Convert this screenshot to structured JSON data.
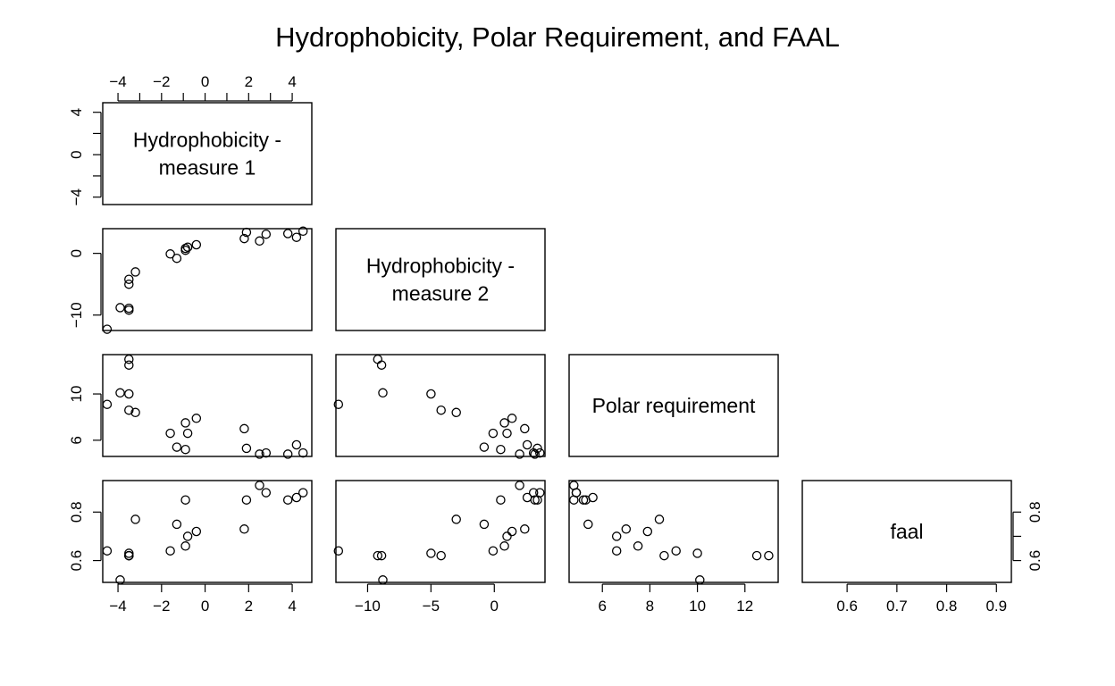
{
  "chart_data": {
    "type": "scatter",
    "title": "Hydrophobicity, Polar Requirement, and FAAL",
    "variables": [
      {
        "key": "h1",
        "label": [
          "Hydrophobicity -",
          "measure 1"
        ],
        "range": [
          -4.7,
          4.9
        ],
        "ticks": [
          -4,
          -2,
          0,
          2,
          4
        ],
        "y_ticks": [
          -4,
          0,
          4
        ]
      },
      {
        "key": "h2",
        "label": [
          "Hydrophobicity -",
          "measure 2"
        ],
        "range": [
          -12.5,
          4.0
        ],
        "ticks": [
          -10,
          -5,
          0
        ],
        "y_ticks": [
          -10,
          0
        ]
      },
      {
        "key": "pr",
        "label": [
          "Polar requirement"
        ],
        "range": [
          4.6,
          13.4
        ],
        "ticks": [
          6,
          8,
          10,
          12
        ],
        "y_ticks": [
          6,
          10
        ]
      },
      {
        "key": "faal",
        "label": [
          "faal"
        ],
        "range": [
          0.51,
          0.93
        ],
        "ticks": [
          0.6,
          0.7,
          0.8,
          0.9
        ],
        "y_ticks": [
          0.6,
          0.8
        ]
      }
    ],
    "observations": [
      {
        "h1": -4.5,
        "h2": -12.3,
        "pr": 9.1,
        "faal": 0.64
      },
      {
        "h1": -3.9,
        "h2": -8.8,
        "pr": 10.1,
        "faal": 0.52
      },
      {
        "h1": -3.5,
        "h2": -8.9,
        "pr": 12.5,
        "faal": 0.62
      },
      {
        "h1": -3.5,
        "h2": -9.2,
        "pr": 13.0,
        "faal": 0.62
      },
      {
        "h1": -3.5,
        "h2": -5.0,
        "pr": 10.0,
        "faal": 0.63
      },
      {
        "h1": -3.5,
        "h2": -4.2,
        "pr": 8.6,
        "faal": 0.62
      },
      {
        "h1": -3.2,
        "h2": -3.0,
        "pr": 8.4,
        "faal": 0.77
      },
      {
        "h1": -1.6,
        "h2": -0.1,
        "pr": 6.6,
        "faal": 0.64
      },
      {
        "h1": -1.3,
        "h2": -0.8,
        "pr": 5.4,
        "faal": 0.75
      },
      {
        "h1": -0.9,
        "h2": 0.5,
        "pr": 5.2,
        "faal": 0.85
      },
      {
        "h1": -0.9,
        "h2": 0.8,
        "pr": 7.5,
        "faal": 0.66
      },
      {
        "h1": -0.8,
        "h2": 1.0,
        "pr": 6.6,
        "faal": 0.7
      },
      {
        "h1": -0.4,
        "h2": 1.4,
        "pr": 7.9,
        "faal": 0.72
      },
      {
        "h1": 1.8,
        "h2": 2.4,
        "pr": 7.0,
        "faal": 0.73
      },
      {
        "h1": 1.9,
        "h2": 3.4,
        "pr": 5.3,
        "faal": 0.85
      },
      {
        "h1": 2.5,
        "h2": 2.0,
        "pr": 4.8,
        "faal": 0.91
      },
      {
        "h1": 2.8,
        "h2": 3.1,
        "pr": 4.9,
        "faal": 0.88
      },
      {
        "h1": 3.8,
        "h2": 3.2,
        "pr": 4.8,
        "faal": 0.85
      },
      {
        "h1": 4.2,
        "h2": 2.6,
        "pr": 5.6,
        "faal": 0.86
      },
      {
        "h1": 4.5,
        "h2": 3.6,
        "pr": 4.9,
        "faal": 0.88
      }
    ],
    "layout": "lower-triangle pairs plot with labels on diagonal",
    "grid": false
  }
}
